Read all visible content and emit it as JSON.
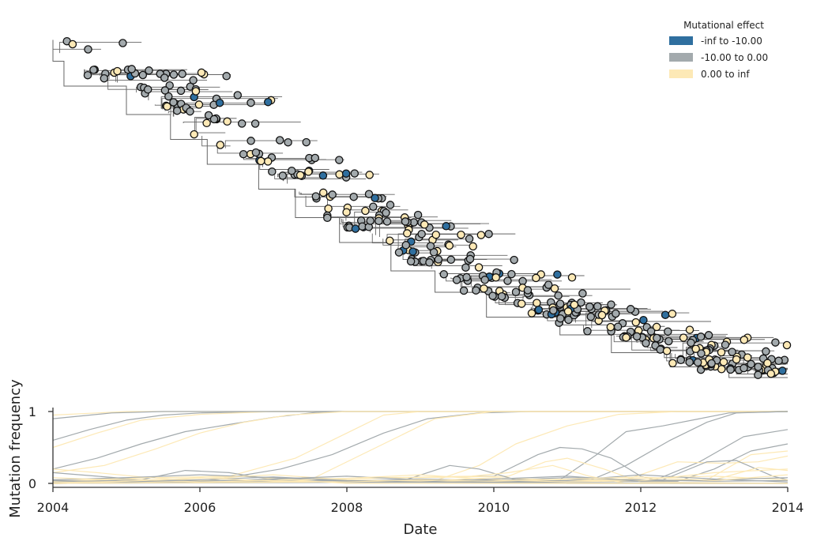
{
  "chart_data": [
    {
      "type": "tree",
      "x": {
        "unit": "year",
        "range": [
          2004,
          2014
        ]
      },
      "tree": {
        "trunk": [
          [
            2004.0,
            0.05
          ],
          [
            2004.15,
            0.11
          ],
          [
            2005.0,
            0.18
          ],
          [
            2005.6,
            0.26
          ],
          [
            2006.1,
            0.33
          ],
          [
            2006.8,
            0.4
          ],
          [
            2007.3,
            0.47
          ],
          [
            2007.9,
            0.55
          ],
          [
            2008.6,
            0.62
          ],
          [
            2009.2,
            0.7
          ],
          [
            2009.9,
            0.76
          ],
          [
            2010.9,
            0.83
          ],
          [
            2011.6,
            0.88
          ],
          [
            2012.4,
            0.93
          ],
          [
            2013.2,
            0.97
          ],
          [
            2014.0,
            1.0
          ]
        ]
      },
      "legend": {
        "title": "Mutational effect",
        "position": "top-right",
        "items": [
          {
            "label": "-inf to -10.00",
            "color": "#2f6f9f"
          },
          {
            "label": "-10.00 to 0.00",
            "color": "#a3aaad"
          },
          {
            "label": "0.00 to inf",
            "color": "#fde9b6"
          }
        ]
      },
      "grid": false
    },
    {
      "type": "line",
      "xlabel": "Date",
      "ylabel": "Mutation frequency",
      "xlim": [
        2004,
        2014
      ],
      "ylim": [
        0,
        1
      ],
      "xticks": [
        "2004",
        "2006",
        "2008",
        "2010",
        "2012",
        "2014"
      ],
      "yticks": [
        "0",
        "1"
      ],
      "grid": false,
      "series": [
        {
          "color": "#a3aaad",
          "values": [
            [
              2004,
              0.6
            ],
            [
              2004.5,
              0.75
            ],
            [
              2005,
              0.88
            ],
            [
              2005.5,
              0.95
            ],
            [
              2006,
              0.98
            ],
            [
              2007,
              1
            ],
            [
              2014,
              1
            ]
          ]
        },
        {
          "color": "#fde9b6",
          "values": [
            [
              2004,
              0.5
            ],
            [
              2004.6,
              0.7
            ],
            [
              2005.2,
              0.88
            ],
            [
              2006,
              0.96
            ],
            [
              2007,
              1
            ],
            [
              2014,
              1
            ]
          ]
        },
        {
          "color": "#fde9b6",
          "values": [
            [
              2004,
              0.95
            ],
            [
              2005,
              1
            ],
            [
              2014,
              1
            ]
          ]
        },
        {
          "color": "#a3aaad",
          "values": [
            [
              2004,
              0.9
            ],
            [
              2004.8,
              0.98
            ],
            [
              2005.5,
              1
            ],
            [
              2014,
              1
            ]
          ]
        },
        {
          "color": "#a3aaad",
          "values": [
            [
              2004,
              0.2
            ],
            [
              2004.6,
              0.35
            ],
            [
              2005.2,
              0.55
            ],
            [
              2005.8,
              0.72
            ],
            [
              2006.4,
              0.82
            ],
            [
              2007,
              0.92
            ],
            [
              2007.6,
              0.99
            ],
            [
              2008,
              1
            ],
            [
              2014,
              1
            ]
          ]
        },
        {
          "color": "#fde9b6",
          "values": [
            [
              2004,
              0.15
            ],
            [
              2004.7,
              0.25
            ],
            [
              2005.4,
              0.48
            ],
            [
              2006,
              0.7
            ],
            [
              2006.6,
              0.85
            ],
            [
              2007.2,
              0.95
            ],
            [
              2008,
              1
            ],
            [
              2014,
              1
            ]
          ]
        },
        {
          "color": "#a3aaad",
          "values": [
            [
              2004,
              0.02
            ],
            [
              2006.2,
              0.05
            ],
            [
              2007.1,
              0.2
            ],
            [
              2007.8,
              0.4
            ],
            [
              2008.5,
              0.7
            ],
            [
              2009.1,
              0.9
            ],
            [
              2009.8,
              0.98
            ],
            [
              2010.5,
              1
            ],
            [
              2014,
              1
            ]
          ]
        },
        {
          "color": "#fde9b6",
          "values": [
            [
              2004,
              0.05
            ],
            [
              2006.4,
              0.1
            ],
            [
              2007.3,
              0.35
            ],
            [
              2008,
              0.7
            ],
            [
              2008.5,
              0.95
            ],
            [
              2009,
              1
            ],
            [
              2014,
              1
            ]
          ]
        },
        {
          "color": "#fde9b6",
          "values": [
            [
              2004,
              0.02
            ],
            [
              2007.5,
              0.05
            ],
            [
              2008.5,
              0.55
            ],
            [
              2009.2,
              0.9
            ],
            [
              2010,
              1
            ],
            [
              2014,
              1
            ]
          ]
        },
        {
          "color": "#fde9b6",
          "values": [
            [
              2004,
              0.0
            ],
            [
              2009.2,
              0.04
            ],
            [
              2009.8,
              0.25
            ],
            [
              2010.3,
              0.55
            ],
            [
              2011,
              0.8
            ],
            [
              2011.7,
              0.96
            ],
            [
              2012.5,
              1
            ],
            [
              2014,
              1
            ]
          ]
        },
        {
          "color": "#a3aaad",
          "values": [
            [
              2004,
              0.0
            ],
            [
              2010.9,
              0.05
            ],
            [
              2011.4,
              0.4
            ],
            [
              2011.8,
              0.72
            ],
            [
              2012.3,
              0.8
            ],
            [
              2012.8,
              0.9
            ],
            [
              2013.2,
              0.98
            ],
            [
              2014,
              1
            ]
          ]
        },
        {
          "color": "#a3aaad",
          "values": [
            [
              2004,
              0.0
            ],
            [
              2011.3,
              0.04
            ],
            [
              2011.8,
              0.25
            ],
            [
              2012.4,
              0.6
            ],
            [
              2012.9,
              0.85
            ],
            [
              2013.3,
              0.98
            ],
            [
              2014,
              1
            ]
          ]
        },
        {
          "color": "#a3aaad",
          "values": [
            [
              2004,
              0.0
            ],
            [
              2012.2,
              0.05
            ],
            [
              2012.8,
              0.3
            ],
            [
              2013.4,
              0.65
            ],
            [
              2014,
              0.75
            ]
          ]
        },
        {
          "color": "#a3aaad",
          "values": [
            [
              2004,
              0.0
            ],
            [
              2012.5,
              0.03
            ],
            [
              2013,
              0.2
            ],
            [
              2013.5,
              0.45
            ],
            [
              2014,
              0.55
            ]
          ]
        },
        {
          "color": "#fde9b6",
          "values": [
            [
              2004,
              0.0
            ],
            [
              2012.9,
              0.05
            ],
            [
              2013.5,
              0.4
            ],
            [
              2014,
              0.45
            ]
          ]
        },
        {
          "color": "#fde9b6",
          "values": [
            [
              2004,
              0.0
            ],
            [
              2011.8,
              0.05
            ],
            [
              2012.5,
              0.3
            ],
            [
              2013.1,
              0.28
            ],
            [
              2013.6,
              0.3
            ],
            [
              2014,
              0.38
            ]
          ]
        },
        {
          "color": "#a3aaad",
          "values": [
            [
              2004,
              0.0
            ],
            [
              2010,
              0.1
            ],
            [
              2010.6,
              0.4
            ],
            [
              2010.9,
              0.5
            ],
            [
              2011.2,
              0.48
            ],
            [
              2011.6,
              0.35
            ],
            [
              2012,
              0.1
            ],
            [
              2012.4,
              0.0
            ],
            [
              2014,
              0.0
            ]
          ]
        },
        {
          "color": "#fde9b6",
          "values": [
            [
              2004,
              0.0
            ],
            [
              2010.2,
              0.1
            ],
            [
              2010.7,
              0.3
            ],
            [
              2011,
              0.35
            ],
            [
              2011.5,
              0.2
            ],
            [
              2012,
              0.02
            ],
            [
              2014,
              0.0
            ]
          ]
        },
        {
          "color": "#a3aaad",
          "values": [
            [
              2004,
              0.0
            ],
            [
              2008.8,
              0.05
            ],
            [
              2009.4,
              0.25
            ],
            [
              2009.8,
              0.2
            ],
            [
              2010.3,
              0.05
            ],
            [
              2011,
              0.0
            ],
            [
              2014,
              0.0
            ]
          ]
        },
        {
          "color": "#fde9b6",
          "values": [
            [
              2004,
              0.0
            ],
            [
              2009.7,
              0.1
            ],
            [
              2010.2,
              0.15
            ],
            [
              2010.8,
              0.25
            ],
            [
              2011.3,
              0.1
            ],
            [
              2011.8,
              0.0
            ],
            [
              2014,
              0.0
            ]
          ]
        },
        {
          "color": "#a3aaad",
          "values": [
            [
              2004,
              0.0
            ],
            [
              2012.3,
              0.05
            ],
            [
              2012.9,
              0.3
            ],
            [
              2013.3,
              0.32
            ],
            [
              2013.8,
              0.1
            ],
            [
              2014,
              0.05
            ]
          ]
        },
        {
          "color": "#fde9b6",
          "values": [
            [
              2004,
              0.0
            ],
            [
              2013,
              0.05
            ],
            [
              2013.6,
              0.22
            ],
            [
              2014,
              0.18
            ]
          ]
        },
        {
          "color": "#a3aaad",
          "values": [
            [
              2004,
              0.15
            ],
            [
              2004.6,
              0.1
            ],
            [
              2005.2,
              0.05
            ],
            [
              2005.8,
              0.18
            ],
            [
              2006.4,
              0.15
            ],
            [
              2007,
              0.05
            ],
            [
              2007.6,
              0.02
            ],
            [
              2014,
              0.0
            ]
          ]
        },
        {
          "color": "#fde9b6",
          "values": [
            [
              2004,
              0.2
            ],
            [
              2004.6,
              0.15
            ],
            [
              2005.3,
              0.08
            ],
            [
              2006,
              0.04
            ],
            [
              2006.6,
              0.1
            ],
            [
              2007.2,
              0.05
            ],
            [
              2008,
              0.0
            ],
            [
              2014,
              0.0
            ]
          ]
        },
        {
          "color": "#a3aaad",
          "values": [
            [
              2004,
              0.05
            ],
            [
              2005,
              0.08
            ],
            [
              2006,
              0.12
            ],
            [
              2007,
              0.08
            ],
            [
              2008,
              0.03
            ],
            [
              2009,
              0.06
            ],
            [
              2010,
              0.04
            ],
            [
              2011,
              0.08
            ],
            [
              2012,
              0.05
            ],
            [
              2013,
              0.03
            ],
            [
              2014,
              0.04
            ]
          ]
        },
        {
          "color": "#fde9b6",
          "values": [
            [
              2004,
              0.08
            ],
            [
              2005,
              0.04
            ],
            [
              2006,
              0.07
            ],
            [
              2007,
              0.12
            ],
            [
              2008,
              0.05
            ],
            [
              2009,
              0.03
            ],
            [
              2010,
              0.08
            ],
            [
              2011,
              0.04
            ],
            [
              2012,
              0.07
            ],
            [
              2013,
              0.1
            ],
            [
              2014,
              0.05
            ]
          ]
        },
        {
          "color": "#a3aaad",
          "values": [
            [
              2004,
              0.02
            ],
            [
              2005,
              0.05
            ],
            [
              2006,
              0.03
            ],
            [
              2007,
              0.06
            ],
            [
              2008,
              0.1
            ],
            [
              2009,
              0.05
            ],
            [
              2010,
              0.02
            ],
            [
              2011,
              0.04
            ],
            [
              2012,
              0.12
            ],
            [
              2013,
              0.06
            ],
            [
              2014,
              0.02
            ]
          ]
        },
        {
          "color": "#fde9b6",
          "values": [
            [
              2004,
              0.03
            ],
            [
              2005,
              0.06
            ],
            [
              2006,
              0.02
            ],
            [
              2007,
              0.04
            ],
            [
              2008,
              0.07
            ],
            [
              2009,
              0.12
            ],
            [
              2010,
              0.05
            ],
            [
              2011,
              0.02
            ],
            [
              2012,
              0.04
            ],
            [
              2013,
              0.15
            ],
            [
              2014,
              0.2
            ]
          ]
        },
        {
          "color": "#a3aaad",
          "values": [
            [
              2004,
              0.04
            ],
            [
              2005,
              0.02
            ],
            [
              2006,
              0.05
            ],
            [
              2007,
              0.09
            ],
            [
              2008,
              0.04
            ],
            [
              2009,
              0.02
            ],
            [
              2010,
              0.06
            ],
            [
              2011,
              0.1
            ],
            [
              2012,
              0.03
            ],
            [
              2013,
              0.05
            ],
            [
              2014,
              0.08
            ]
          ]
        },
        {
          "color": "#fde9b6",
          "values": [
            [
              2004,
              0.01
            ],
            [
              2005,
              0.03
            ],
            [
              2006,
              0.08
            ],
            [
              2007,
              0.03
            ],
            [
              2008,
              0.02
            ],
            [
              2009,
              0.05
            ],
            [
              2010,
              0.03
            ],
            [
              2011,
              0.06
            ],
            [
              2012,
              0.09
            ],
            [
              2013,
              0.04
            ],
            [
              2014,
              0.12
            ]
          ]
        }
      ]
    }
  ]
}
